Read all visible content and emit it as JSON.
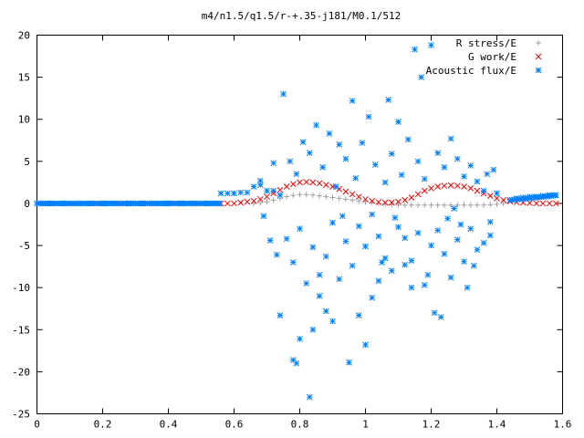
{
  "chart_data": {
    "type": "scatter",
    "title": "m4/n1.5/q1.5/r-+.35-j181/M0.1/512",
    "xlim": [
      0,
      1.6
    ],
    "ylim": [
      -25,
      20
    ],
    "x_ticks": [
      "0",
      "0.2",
      "0.4",
      "0.6",
      "0.8",
      "1",
      "1.2",
      "1.4",
      "1.6"
    ],
    "y_ticks": [
      "20",
      "15",
      "10",
      "5",
      "0",
      "-5",
      "-10",
      "-15",
      "-20",
      "-25"
    ],
    "grid": false,
    "legend_position": "top-right",
    "series": [
      {
        "name": "R stress/E",
        "marker": "+",
        "color": "#a0a0a0",
        "points": [
          [
            0.66,
            0.0
          ],
          [
            0.68,
            0.1
          ],
          [
            0.7,
            0.2
          ],
          [
            0.72,
            0.4
          ],
          [
            0.74,
            0.6
          ],
          [
            0.76,
            0.8
          ],
          [
            0.78,
            0.95
          ],
          [
            0.8,
            1.05
          ],
          [
            0.82,
            1.05
          ],
          [
            0.84,
            1.0
          ],
          [
            0.86,
            0.9
          ],
          [
            0.88,
            0.8
          ],
          [
            0.9,
            0.7
          ],
          [
            0.92,
            0.6
          ],
          [
            0.94,
            0.5
          ],
          [
            0.96,
            0.4
          ],
          [
            0.98,
            0.3
          ],
          [
            1.0,
            0.2
          ],
          [
            1.02,
            0.1
          ],
          [
            1.04,
            0.0
          ],
          [
            1.06,
            -0.1
          ],
          [
            1.08,
            -0.15
          ],
          [
            1.1,
            -0.2
          ],
          [
            1.12,
            -0.2
          ],
          [
            1.14,
            -0.2
          ],
          [
            1.16,
            -0.2
          ],
          [
            1.18,
            -0.2
          ],
          [
            1.2,
            -0.2
          ],
          [
            1.22,
            -0.2
          ],
          [
            1.24,
            -0.2
          ],
          [
            1.26,
            -0.2
          ],
          [
            1.28,
            -0.2
          ],
          [
            1.3,
            -0.2
          ],
          [
            1.32,
            -0.2
          ],
          [
            1.34,
            -0.2
          ],
          [
            1.36,
            -0.2
          ],
          [
            1.38,
            -0.15
          ],
          [
            1.4,
            -0.1
          ],
          [
            1.42,
            0.0
          ]
        ]
      },
      {
        "name": "G work/E",
        "marker": "x",
        "color": "#ff0000",
        "points": [
          [
            0.56,
            0.0
          ],
          [
            0.58,
            0.0
          ],
          [
            0.6,
            0.0
          ],
          [
            0.62,
            0.1
          ],
          [
            0.64,
            0.2
          ],
          [
            0.66,
            0.3
          ],
          [
            0.68,
            0.5
          ],
          [
            0.7,
            0.8
          ],
          [
            0.72,
            1.2
          ],
          [
            0.74,
            1.6
          ],
          [
            0.76,
            2.0
          ],
          [
            0.78,
            2.3
          ],
          [
            0.8,
            2.5
          ],
          [
            0.82,
            2.55
          ],
          [
            0.84,
            2.5
          ],
          [
            0.86,
            2.4
          ],
          [
            0.88,
            2.2
          ],
          [
            0.9,
            2.0
          ],
          [
            0.92,
            1.7
          ],
          [
            0.94,
            1.4
          ],
          [
            0.96,
            1.1
          ],
          [
            0.98,
            0.8
          ],
          [
            1.0,
            0.5
          ],
          [
            1.02,
            0.3
          ],
          [
            1.04,
            0.15
          ],
          [
            1.06,
            0.1
          ],
          [
            1.08,
            0.1
          ],
          [
            1.1,
            0.2
          ],
          [
            1.12,
            0.4
          ],
          [
            1.14,
            0.7
          ],
          [
            1.16,
            1.1
          ],
          [
            1.18,
            1.5
          ],
          [
            1.2,
            1.8
          ],
          [
            1.22,
            2.0
          ],
          [
            1.24,
            2.1
          ],
          [
            1.26,
            2.15
          ],
          [
            1.28,
            2.1
          ],
          [
            1.3,
            2.0
          ],
          [
            1.32,
            1.8
          ],
          [
            1.34,
            1.5
          ],
          [
            1.36,
            1.2
          ],
          [
            1.38,
            0.9
          ],
          [
            1.4,
            0.6
          ],
          [
            1.42,
            0.4
          ],
          [
            1.44,
            0.25
          ],
          [
            1.46,
            0.15
          ],
          [
            1.48,
            0.1
          ],
          [
            1.5,
            0.05
          ],
          [
            1.52,
            0.0
          ],
          [
            1.54,
            0.0
          ],
          [
            1.56,
            0.0
          ],
          [
            1.58,
            0.0
          ]
        ]
      },
      {
        "name": "Acoustic flux/E",
        "marker": "*",
        "color": "#0080ff",
        "points": [
          [
            0.0,
            0.0
          ],
          [
            0.04,
            0.0
          ],
          [
            0.08,
            0.0
          ],
          [
            0.12,
            0.0
          ],
          [
            0.16,
            0.0
          ],
          [
            0.2,
            0.0
          ],
          [
            0.24,
            0.0
          ],
          [
            0.28,
            0.0
          ],
          [
            0.32,
            0.0
          ],
          [
            0.36,
            0.0
          ],
          [
            0.4,
            0.0
          ],
          [
            0.44,
            0.0
          ],
          [
            0.48,
            0.0
          ],
          [
            0.52,
            0.0
          ],
          [
            0.555,
            0.0
          ],
          [
            0.56,
            1.2
          ],
          [
            0.58,
            1.2
          ],
          [
            0.6,
            1.2
          ],
          [
            0.62,
            1.3
          ],
          [
            0.64,
            1.3
          ],
          [
            0.66,
            2.0
          ],
          [
            0.68,
            2.2
          ],
          [
            0.7,
            1.5
          ],
          [
            0.72,
            1.5
          ],
          [
            0.74,
            1.0
          ],
          [
            1.46,
            0.6
          ],
          [
            1.48,
            0.7
          ],
          [
            1.5,
            0.8
          ],
          [
            1.52,
            0.8
          ],
          [
            1.54,
            0.9
          ],
          [
            1.56,
            1.0
          ],
          [
            1.58,
            1.0
          ],
          [
            0.75,
            13.0
          ],
          [
            0.74,
            -13.3
          ],
          [
            0.73,
            -6.1
          ],
          [
            0.72,
            4.8
          ],
          [
            0.71,
            -4.4
          ],
          [
            0.69,
            -1.5
          ],
          [
            0.68,
            2.7
          ],
          [
            0.78,
            -18.6
          ],
          [
            0.79,
            -19.0
          ],
          [
            0.8,
            -16.1
          ],
          [
            0.83,
            -23.0
          ],
          [
            0.84,
            -15.0
          ],
          [
            0.85,
            9.3
          ],
          [
            0.86,
            -8.5
          ],
          [
            0.88,
            -12.8
          ],
          [
            0.9,
            -14.0
          ],
          [
            0.92,
            7.0
          ],
          [
            0.93,
            -1.5
          ],
          [
            0.95,
            -18.9
          ],
          [
            0.96,
            12.2
          ],
          [
            0.98,
            -13.3
          ],
          [
            1.0,
            -16.8
          ],
          [
            1.01,
            10.3
          ],
          [
            1.02,
            -1.3
          ],
          [
            1.04,
            -9.2
          ],
          [
            1.05,
            -7.0
          ],
          [
            1.07,
            12.3
          ],
          [
            1.09,
            -1.7
          ],
          [
            1.1,
            9.7
          ],
          [
            1.12,
            -7.3
          ],
          [
            1.14,
            -10.0
          ],
          [
            1.15,
            18.3
          ],
          [
            1.17,
            15.0
          ],
          [
            1.19,
            -8.5
          ],
          [
            1.2,
            18.8
          ],
          [
            1.21,
            -13.0
          ],
          [
            1.23,
            -13.5
          ],
          [
            1.25,
            -1.8
          ],
          [
            1.27,
            -0.6
          ],
          [
            1.29,
            -2.5
          ],
          [
            1.31,
            -10.0
          ],
          [
            1.33,
            -7.4
          ],
          [
            1.36,
            1.5
          ],
          [
            1.38,
            -2.2
          ],
          [
            1.4,
            1.2
          ],
          [
            0.77,
            5.0
          ],
          [
            0.79,
            3.5
          ],
          [
            0.81,
            7.3
          ],
          [
            0.83,
            6.0
          ],
          [
            0.87,
            4.3
          ],
          [
            0.89,
            8.3
          ],
          [
            0.91,
            2.0
          ],
          [
            0.94,
            5.3
          ],
          [
            0.97,
            3.0
          ],
          [
            0.99,
            7.2
          ],
          [
            1.03,
            4.6
          ],
          [
            1.06,
            2.5
          ],
          [
            1.08,
            5.9
          ],
          [
            1.11,
            3.4
          ],
          [
            1.13,
            7.6
          ],
          [
            1.16,
            5.0
          ],
          [
            1.18,
            2.9
          ],
          [
            1.22,
            6.0
          ],
          [
            1.24,
            4.3
          ],
          [
            1.26,
            7.7
          ],
          [
            1.28,
            5.3
          ],
          [
            1.3,
            3.2
          ],
          [
            1.32,
            4.5
          ],
          [
            1.34,
            2.6
          ],
          [
            1.37,
            3.5
          ],
          [
            1.39,
            4.0
          ],
          [
            0.76,
            -4.2
          ],
          [
            0.78,
            -7.0
          ],
          [
            0.8,
            -3.0
          ],
          [
            0.82,
            -9.5
          ],
          [
            0.84,
            -5.2
          ],
          [
            0.86,
            -11.0
          ],
          [
            0.88,
            -6.3
          ],
          [
            0.9,
            -2.3
          ],
          [
            0.92,
            -9.0
          ],
          [
            0.94,
            -4.5
          ],
          [
            0.96,
            -7.4
          ],
          [
            0.98,
            -2.7
          ],
          [
            1.0,
            -5.1
          ],
          [
            1.02,
            -11.2
          ],
          [
            1.04,
            -3.9
          ],
          [
            1.06,
            -6.5
          ],
          [
            1.08,
            -8.0
          ],
          [
            1.1,
            -2.8
          ],
          [
            1.12,
            -4.1
          ],
          [
            1.14,
            -6.8
          ],
          [
            1.16,
            -3.5
          ],
          [
            1.18,
            -9.7
          ],
          [
            1.2,
            -5.0
          ],
          [
            1.22,
            -3.2
          ],
          [
            1.24,
            -6.0
          ],
          [
            1.26,
            -8.8
          ],
          [
            1.28,
            -4.3
          ],
          [
            1.3,
            -6.9
          ],
          [
            1.32,
            -3.0
          ],
          [
            1.34,
            -5.5
          ],
          [
            1.36,
            -4.7
          ],
          [
            1.38,
            -3.8
          ]
        ]
      }
    ]
  }
}
